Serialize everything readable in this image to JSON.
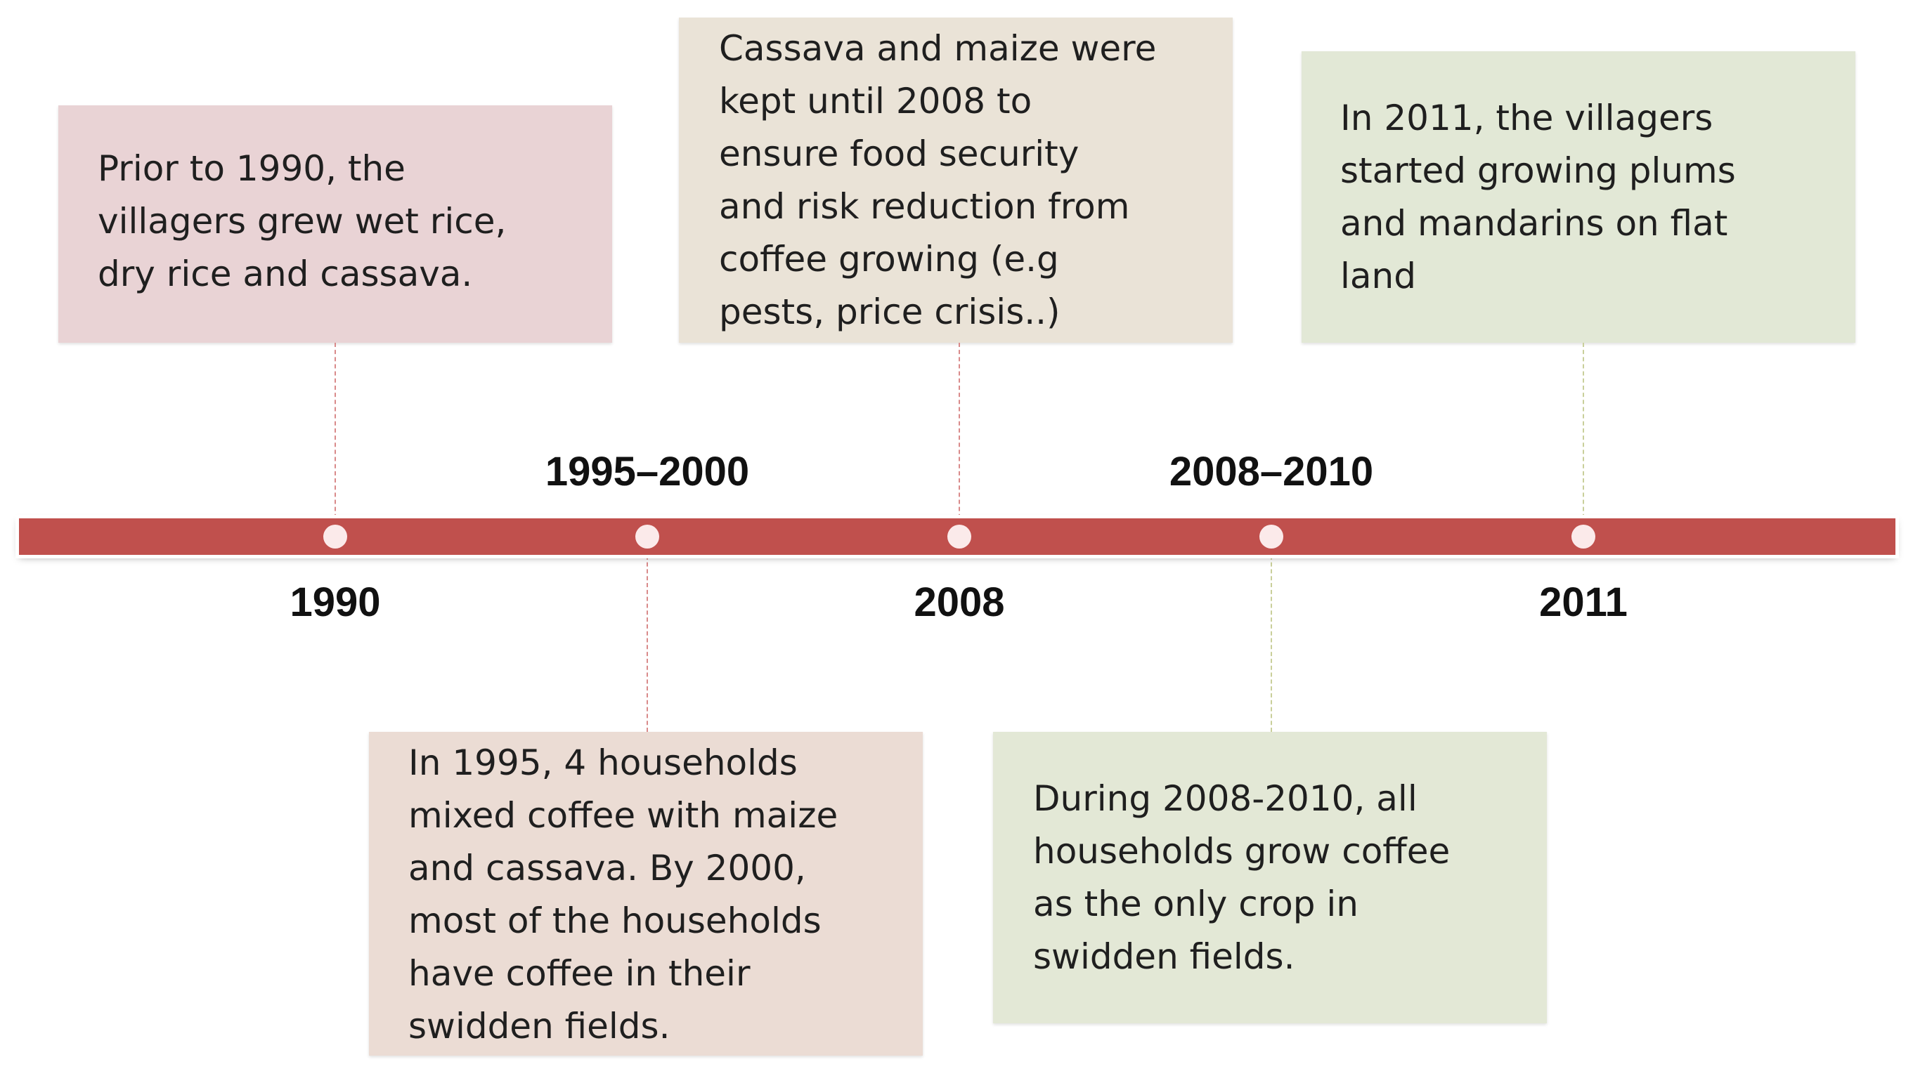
{
  "timeline": {
    "labels_above": [
      "1995–2000",
      "2008–2010"
    ],
    "labels_below": [
      "1990",
      "2008",
      "2011"
    ]
  },
  "events": [
    {
      "period": "1990",
      "text": [
        "Prior to 1990, the",
        "villagers grew wet rice,",
        "dry rice and cassava."
      ],
      "color": "#e9d3d5"
    },
    {
      "period": "1995–2000",
      "text": [
        "In 1995, 4 households",
        "mixed coffee with maize",
        "and cassava. By 2000,",
        "most of the households",
        "have coffee in their",
        "swidden fields."
      ],
      "color": "#ebdcd4"
    },
    {
      "period": "2008",
      "text": [
        "Cassava and maize were",
        "kept until 2008 to",
        "ensure food security",
        "and risk reduction from",
        "coffee growing (e.g",
        "pests, price crisis..)"
      ],
      "color": "#eae3d7"
    },
    {
      "period": "2008–2010",
      "text": [
        "During 2008-2010, all",
        "households grow coffee",
        "as the only crop in",
        "swidden fields."
      ],
      "color": "#e3e8d6"
    },
    {
      "period": "2011",
      "text": [
        "In 2011, the villagers",
        "started growing plums",
        "and mandarins on flat",
        "land"
      ],
      "color": "#e2e8d6"
    }
  ],
  "colors": {
    "bar": "#c0504d",
    "node": "#fbeaea",
    "connector": "#d98a8a"
  }
}
